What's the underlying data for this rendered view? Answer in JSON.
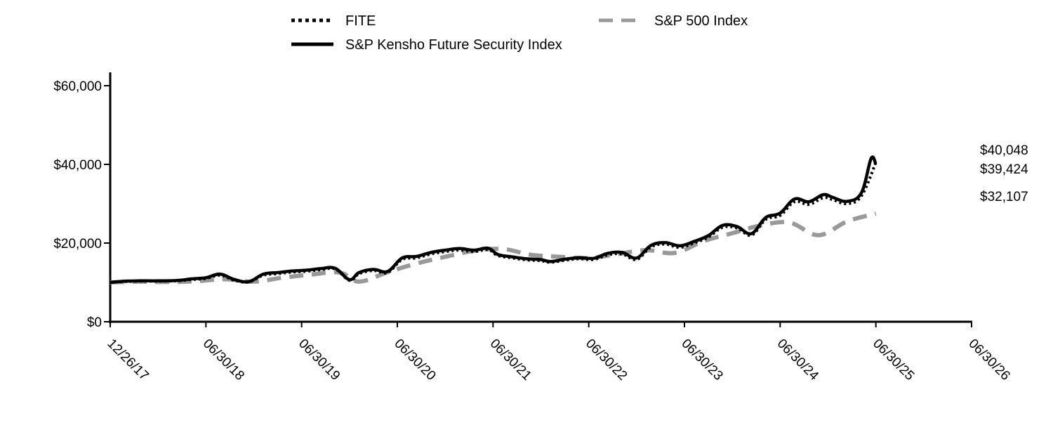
{
  "chart_data": {
    "type": "line",
    "x_ticks": [
      "12/26/17",
      "06/30/18",
      "06/30/19",
      "06/30/20",
      "06/30/21",
      "06/30/22",
      "06/30/23",
      "06/30/24",
      "06/30/25",
      "06/30/26"
    ],
    "y_ticks": [
      "$0",
      "$20,000",
      "$40,000",
      "$60,000"
    ],
    "ylim": [
      0,
      60000
    ],
    "legend_position": "top",
    "grid": false,
    "series": [
      {
        "name": "FITE",
        "style": "dotted",
        "color": "#000000",
        "end_label": "$39,424",
        "x": [
          0,
          0.15,
          0.3,
          0.5,
          0.7,
          0.85,
          1.0,
          1.15,
          1.3,
          1.45,
          1.6,
          1.75,
          1.9,
          2.05,
          2.2,
          2.35,
          2.5,
          2.6,
          2.75,
          2.9,
          3.05,
          3.2,
          3.35,
          3.5,
          3.65,
          3.8,
          3.95,
          4.05,
          4.2,
          4.35,
          4.5,
          4.6,
          4.75,
          4.9,
          5.05,
          5.2,
          5.35,
          5.5,
          5.65,
          5.8,
          5.95,
          6.1,
          6.25,
          6.4,
          6.55,
          6.7,
          6.85,
          7.0,
          7.15,
          7.3,
          7.45,
          7.55,
          7.7,
          7.85,
          8.0,
          8.1,
          8.25,
          8.35,
          8.45,
          8.6,
          8.7,
          8.8,
          8.85,
          8.9,
          8.95,
          9.0
        ],
        "values": [
          10000,
          10200,
          10300,
          10300,
          10400,
          10700,
          11000,
          11800,
          10500,
          10100,
          11800,
          12200,
          12600,
          12800,
          13200,
          13400,
          10500,
          12200,
          13000,
          12500,
          15800,
          16200,
          17200,
          17800,
          18200,
          17800,
          18300,
          16800,
          16200,
          15700,
          15500,
          15100,
          15600,
          16000,
          15800,
          17000,
          17200,
          15800,
          19000,
          19700,
          18900,
          20000,
          21500,
          24000,
          23800,
          22000,
          26000,
          27000,
          30500,
          29800,
          31500,
          31000,
          30000,
          32000,
          40500,
          40000,
          39424,
          39424,
          39424,
          39424,
          39424,
          39424,
          39424,
          39424,
          39424,
          39424
        ]
      },
      {
        "name": "S&P 500 Index",
        "style": "dashed",
        "color": "#999999",
        "end_label": "$32,107",
        "x": [
          0,
          0.3,
          0.6,
          0.9,
          1.2,
          1.5,
          1.8,
          2.1,
          2.4,
          2.6,
          2.9,
          3.2,
          3.5,
          3.8,
          4.1,
          4.4,
          4.7,
          5.0,
          5.3,
          5.6,
          5.9,
          6.2,
          6.5,
          6.8,
          7.1,
          7.4,
          7.7,
          8.0,
          8.3,
          8.6,
          8.75,
          8.9,
          9.0
        ],
        "values": [
          10000,
          10200,
          10100,
          10300,
          10800,
          10200,
          11200,
          12000,
          12500,
          10200,
          12600,
          14800,
          16500,
          18000,
          18500,
          17000,
          16500,
          16200,
          17200,
          18200,
          17500,
          20500,
          22500,
          24500,
          25200,
          22000,
          25500,
          27500,
          29200,
          27000,
          31500,
          32500,
          32107
        ]
      },
      {
        "name": "S&P Kensho Future Security Index",
        "style": "solid",
        "color": "#000000",
        "end_label": "$40,048",
        "x": [
          0,
          0.15,
          0.3,
          0.5,
          0.7,
          0.85,
          1.0,
          1.15,
          1.3,
          1.45,
          1.6,
          1.75,
          1.9,
          2.05,
          2.2,
          2.35,
          2.5,
          2.6,
          2.75,
          2.9,
          3.05,
          3.2,
          3.35,
          3.5,
          3.65,
          3.8,
          3.95,
          4.05,
          4.2,
          4.35,
          4.5,
          4.6,
          4.75,
          4.9,
          5.05,
          5.2,
          5.35,
          5.5,
          5.65,
          5.8,
          5.95,
          6.1,
          6.25,
          6.4,
          6.55,
          6.7,
          6.85,
          7.0,
          7.15,
          7.3,
          7.45,
          7.55,
          7.7,
          7.85,
          7.95,
          8.0
        ],
        "values": [
          10000,
          10300,
          10400,
          10400,
          10500,
          10900,
          11200,
          12100,
          10700,
          10200,
          12100,
          12500,
          12900,
          13100,
          13500,
          13600,
          10700,
          12500,
          13300,
          12800,
          16200,
          16600,
          17600,
          18200,
          18600,
          18200,
          18700,
          17100,
          16500,
          16000,
          15800,
          15300,
          15900,
          16300,
          16100,
          17400,
          17600,
          16200,
          19400,
          20100,
          19300,
          20400,
          21900,
          24500,
          24200,
          22400,
          26500,
          27600,
          31200,
          30500,
          32300,
          31600,
          30600,
          32800,
          41500,
          40048
        ]
      }
    ]
  }
}
